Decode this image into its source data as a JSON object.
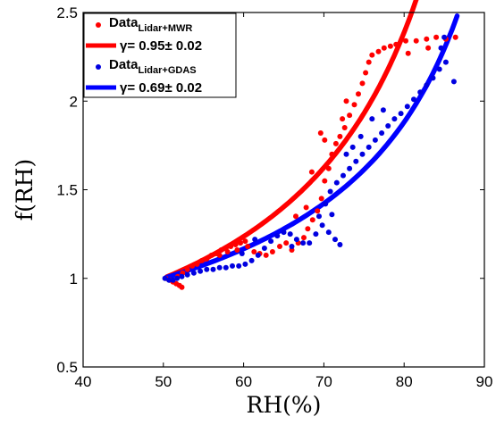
{
  "chart_data": {
    "type": "scatter",
    "xlabel": "RH(%)",
    "ylabel": "f(RH)",
    "xlim": [
      40,
      90
    ],
    "ylim": [
      0.5,
      2.5
    ],
    "xticks": [
      40,
      50,
      60,
      70,
      80,
      90
    ],
    "yticks": [
      0.5,
      1,
      1.5,
      2,
      2.5
    ],
    "xtick_labels": [
      "40",
      "50",
      "60",
      "70",
      "80",
      "90"
    ],
    "ytick_labels": [
      "0.5",
      "1",
      "1.5",
      "2",
      "2.5"
    ],
    "legend_position": "top-left",
    "series": [
      {
        "name": "Data Lidar+MWR",
        "legend_main": "Data",
        "legend_sub": "Lidar+MWR",
        "kind": "scatter",
        "color": "#ff0000",
        "points": [
          [
            50.3,
            1.0
          ],
          [
            50.8,
            0.99
          ],
          [
            51.2,
            0.98
          ],
          [
            51.6,
            0.97
          ],
          [
            52.0,
            0.96
          ],
          [
            52.3,
            0.95
          ],
          [
            51.8,
            1.01
          ],
          [
            52.4,
            1.03
          ],
          [
            53.0,
            1.05
          ],
          [
            53.6,
            1.07
          ],
          [
            54.2,
            1.08
          ],
          [
            54.8,
            1.1
          ],
          [
            55.4,
            1.11
          ],
          [
            56.0,
            1.13
          ],
          [
            56.6,
            1.14
          ],
          [
            57.2,
            1.16
          ],
          [
            57.8,
            1.17
          ],
          [
            58.4,
            1.18
          ],
          [
            59.0,
            1.19
          ],
          [
            59.6,
            1.2
          ],
          [
            60.2,
            1.21
          ],
          [
            57.0,
            1.13
          ],
          [
            58.0,
            1.15
          ],
          [
            59.2,
            1.16
          ],
          [
            60.5,
            1.18
          ],
          [
            61.3,
            1.15
          ],
          [
            62.0,
            1.14
          ],
          [
            62.8,
            1.13
          ],
          [
            63.6,
            1.15
          ],
          [
            64.5,
            1.18
          ],
          [
            65.3,
            1.2
          ],
          [
            66.0,
            1.16
          ],
          [
            66.8,
            1.2
          ],
          [
            67.5,
            1.23
          ],
          [
            68.0,
            1.28
          ],
          [
            68.6,
            1.33
          ],
          [
            69.2,
            1.38
          ],
          [
            69.7,
            1.45
          ],
          [
            70.1,
            1.55
          ],
          [
            70.6,
            1.62
          ],
          [
            71.0,
            1.7
          ],
          [
            71.5,
            1.76
          ],
          [
            69.6,
            1.82
          ],
          [
            70.1,
            1.78
          ],
          [
            72.0,
            1.8
          ],
          [
            72.6,
            1.85
          ],
          [
            73.2,
            1.92
          ],
          [
            73.8,
            1.98
          ],
          [
            74.3,
            2.04
          ],
          [
            74.8,
            2.1
          ],
          [
            75.2,
            2.16
          ],
          [
            75.6,
            2.22
          ],
          [
            76.0,
            2.26
          ],
          [
            76.8,
            2.28
          ],
          [
            77.5,
            2.3
          ],
          [
            78.3,
            2.31
          ],
          [
            79.0,
            2.32
          ],
          [
            80.2,
            2.34
          ],
          [
            81.5,
            2.34
          ],
          [
            82.8,
            2.35
          ],
          [
            84.0,
            2.36
          ],
          [
            85.2,
            2.35
          ],
          [
            86.4,
            2.36
          ],
          [
            83.0,
            2.3
          ],
          [
            80.5,
            2.27
          ],
          [
            72.8,
            2.0
          ],
          [
            72.3,
            1.9
          ],
          [
            68.5,
            1.6
          ],
          [
            67.8,
            1.4
          ],
          [
            66.5,
            1.35
          ]
        ]
      },
      {
        "name": "γ= 0.95± 0.02",
        "kind": "fit",
        "gamma": 0.95,
        "color": "#ff0000",
        "x_range": [
          50.4,
          81.9
        ]
      },
      {
        "name": "Data Lidar+GDAS",
        "legend_main": "Data",
        "legend_sub": "Lidar+GDAS",
        "kind": "scatter",
        "color": "#0000e0",
        "points": [
          [
            50.2,
            1.0
          ],
          [
            50.7,
            0.99
          ],
          [
            51.2,
            0.99
          ],
          [
            51.7,
            1.0
          ],
          [
            52.3,
            1.01
          ],
          [
            53.0,
            1.02
          ],
          [
            53.8,
            1.03
          ],
          [
            54.6,
            1.04
          ],
          [
            55.4,
            1.05
          ],
          [
            56.2,
            1.05
          ],
          [
            57.0,
            1.06
          ],
          [
            57.8,
            1.06
          ],
          [
            58.6,
            1.07
          ],
          [
            59.4,
            1.07
          ],
          [
            60.2,
            1.08
          ],
          [
            61.0,
            1.1
          ],
          [
            61.8,
            1.13
          ],
          [
            62.6,
            1.17
          ],
          [
            63.4,
            1.21
          ],
          [
            64.2,
            1.24
          ],
          [
            65.0,
            1.26
          ],
          [
            65.8,
            1.25
          ],
          [
            66.6,
            1.22
          ],
          [
            67.4,
            1.2
          ],
          [
            68.2,
            1.2
          ],
          [
            69.0,
            1.25
          ],
          [
            69.8,
            1.3
          ],
          [
            70.6,
            1.26
          ],
          [
            71.4,
            1.22
          ],
          [
            72.0,
            1.19
          ],
          [
            71.0,
            1.36
          ],
          [
            70.2,
            1.42
          ],
          [
            70.8,
            1.49
          ],
          [
            71.6,
            1.54
          ],
          [
            72.4,
            1.58
          ],
          [
            73.2,
            1.62
          ],
          [
            74.0,
            1.66
          ],
          [
            74.8,
            1.7
          ],
          [
            75.6,
            1.74
          ],
          [
            76.4,
            1.78
          ],
          [
            77.2,
            1.82
          ],
          [
            78.0,
            1.86
          ],
          [
            78.8,
            1.9
          ],
          [
            79.6,
            1.93
          ],
          [
            80.4,
            1.97
          ],
          [
            81.2,
            2.01
          ],
          [
            82.0,
            2.05
          ],
          [
            82.8,
            2.09
          ],
          [
            83.6,
            2.13
          ],
          [
            84.4,
            2.18
          ],
          [
            85.2,
            2.22
          ],
          [
            86.2,
            2.11
          ],
          [
            85.0,
            2.36
          ],
          [
            84.6,
            2.3
          ],
          [
            74.6,
            1.8
          ],
          [
            73.6,
            1.74
          ],
          [
            76.0,
            1.9
          ],
          [
            77.4,
            1.95
          ],
          [
            72.8,
            1.7
          ],
          [
            69.4,
            1.35
          ],
          [
            66.0,
            1.18
          ],
          [
            61.4,
            1.22
          ],
          [
            59.8,
            1.14
          ]
        ]
      },
      {
        "name": "γ= 0.69± 0.02",
        "kind": "fit",
        "gamma": 0.69,
        "color": "#0000ff",
        "x_range": [
          50.4,
          86.6
        ]
      }
    ]
  }
}
